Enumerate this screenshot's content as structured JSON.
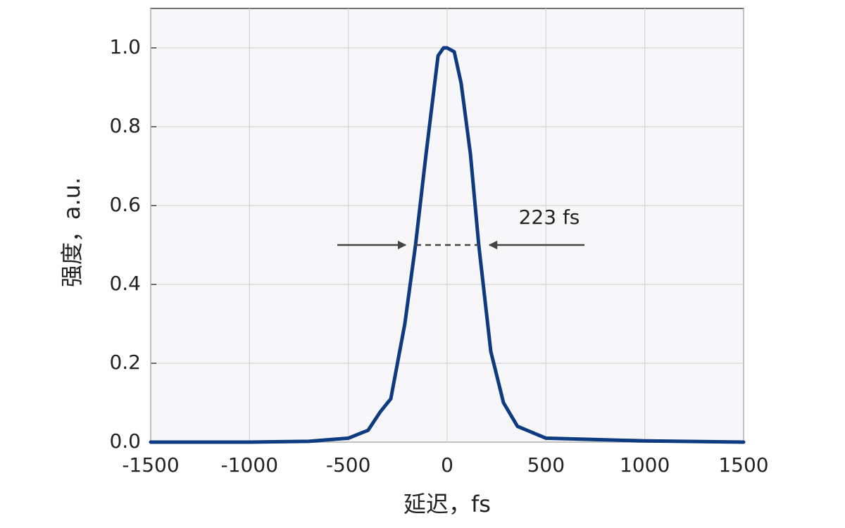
{
  "chart_data": {
    "type": "line",
    "xlabel": "延迟，fs",
    "ylabel": "强度，a.u.",
    "annotation": "223 fs",
    "x": [
      -1500,
      -1000,
      -700,
      -500,
      -400,
      -338,
      -285,
      -214,
      -160,
      -107,
      -46,
      -18,
      0,
      36,
      71,
      118,
      160,
      221,
      285,
      356,
      500,
      1000,
      1500
    ],
    "series": [
      {
        "color": "#0d3a80",
        "values": [
          0,
          0,
          0.002,
          0.01,
          0.03,
          0.077,
          0.11,
          0.3,
          0.5,
          0.73,
          0.98,
          1.0,
          1.0,
          0.99,
          0.91,
          0.73,
          0.5,
          0.23,
          0.1,
          0.04,
          0.01,
          0.003,
          0
        ]
      }
    ],
    "xlim": [
      -1500,
      1500
    ],
    "ylim": [
      0,
      1.1
    ],
    "xticks": [
      -1500,
      -1000,
      -500,
      0,
      500,
      1000,
      1500
    ],
    "yticks": [
      {
        "value": 0,
        "label": "0.0"
      },
      0.2,
      0.4,
      0.6,
      0.8,
      {
        "value": 1,
        "label": "1.0"
      }
    ],
    "grid": true
  }
}
